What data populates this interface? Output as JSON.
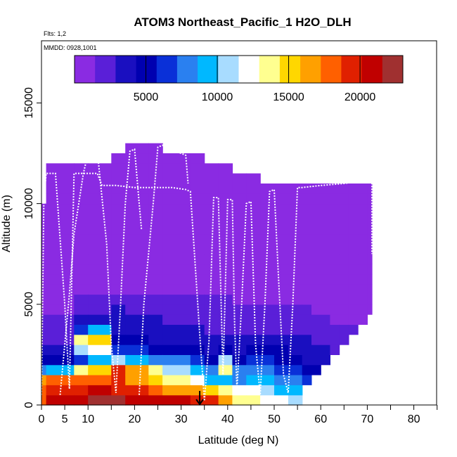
{
  "chart_data": {
    "type": "heatmap",
    "title": "ATOM3 Northeast_Pacific_1 H2O_DLH",
    "flights_label": "Flts: 1,2",
    "date_label": "MMDD: 0928,1001",
    "xlabel": "Latitude (deg N)",
    "ylabel": "Altitude (m)",
    "xlim": [
      0,
      85
    ],
    "ylim": [
      0,
      17800
    ],
    "x_ticks": [
      0,
      5,
      10,
      20,
      30,
      40,
      50,
      60,
      70,
      80
    ],
    "y_ticks": [
      0,
      5000,
      10000,
      15000
    ],
    "colorbar": {
      "min": 0,
      "max": 23000,
      "ticks": [
        5000,
        10000,
        15000,
        20000
      ],
      "colors": [
        "#8a2be2",
        "#5a1fd8",
        "#1a0fc0",
        "#0000b0",
        "#0a30d8",
        "#2a80f0",
        "#00b8ff",
        "#a8dcff",
        "#ffffff",
        "#ffff90",
        "#ffd700",
        "#ffa000",
        "#ff6000",
        "#e02000",
        "#c00000",
        "#a03030"
      ]
    },
    "cell_size": {
      "lat": 1,
      "alt": 500
    },
    "columns": [
      {
        "lat_start": 0,
        "lat_end": 1,
        "top": 10000,
        "values": [
          18500,
          17500,
          16500,
          7500,
          4500,
          3000,
          2500,
          2000,
          1500,
          1000,
          700,
          500,
          400,
          300,
          200,
          200,
          200,
          150,
          150,
          100
        ]
      },
      {
        "lat_start": 1,
        "lat_end": 7,
        "top": 12000,
        "values": [
          21000,
          19000,
          17500,
          9000,
          5000,
          3200,
          2700,
          2200,
          1800,
          1200,
          900,
          600,
          500,
          400,
          300,
          250,
          200,
          150,
          150,
          100,
          100,
          100,
          100,
          100
        ]
      },
      {
        "lat_start": 7,
        "lat_end": 10,
        "top": 12000,
        "values": [
          21500,
          20000,
          18000,
          13000,
          6000,
          10500,
          13000,
          6500,
          3000,
          2000,
          1500,
          1000,
          700,
          500,
          400,
          300,
          250,
          200,
          150,
          150,
          100,
          100,
          100,
          100
        ]
      },
      {
        "lat_start": 10,
        "lat_end": 15,
        "top": 12000,
        "values": [
          22000,
          20500,
          18500,
          15000,
          9000,
          12000,
          15500,
          9000,
          3500,
          2200,
          1600,
          1100,
          800,
          600,
          400,
          300,
          250,
          200,
          150,
          150,
          100,
          100,
          100,
          100
        ]
      },
      {
        "lat_start": 15,
        "lat_end": 18,
        "top": 12500,
        "values": [
          22000,
          20000,
          19500,
          20000,
          10500,
          6500,
          5500,
          4000,
          3500,
          3000,
          2000,
          1200,
          800,
          600,
          400,
          300,
          250,
          200,
          150,
          150,
          100,
          100,
          100,
          100,
          100
        ]
      },
      {
        "lat_start": 18,
        "lat_end": 23,
        "top": 13000,
        "values": [
          21500,
          19000,
          17000,
          16000,
          9500,
          6000,
          4500,
          3500,
          3200,
          2800,
          2000,
          1300,
          900,
          700,
          500,
          400,
          300,
          250,
          200,
          150,
          150,
          100,
          100,
          100,
          100,
          100
        ]
      },
      {
        "lat_start": 23,
        "lat_end": 26,
        "top": 13000,
        "values": [
          21000,
          18000,
          15000,
          13500,
          8500,
          5500,
          4200,
          3200,
          3000,
          2700,
          1900,
          1300,
          900,
          700,
          500,
          400,
          300,
          250,
          200,
          150,
          150,
          100,
          100,
          100,
          100,
          100
        ]
      },
      {
        "lat_start": 26,
        "lat_end": 32,
        "top": 12500,
        "values": [
          20500,
          17000,
          13000,
          11000,
          7500,
          5000,
          4000,
          3100,
          2800,
          2500,
          1800,
          1200,
          850,
          650,
          500,
          400,
          300,
          250,
          200,
          150,
          150,
          100,
          100,
          100,
          100
        ]
      },
      {
        "lat_start": 32,
        "lat_end": 35,
        "top": 12500,
        "values": [
          20000,
          16000,
          11500,
          9000,
          6500,
          4500,
          3600,
          3000,
          2600,
          2400,
          1700,
          1100,
          800,
          600,
          450,
          350,
          300,
          250,
          200,
          150,
          150,
          100,
          100,
          100,
          100
        ]
      },
      {
        "lat_start": 35,
        "lat_end": 38,
        "top": 12000,
        "values": [
          19500,
          15000,
          10000,
          7500,
          5500,
          4000,
          3300,
          2800,
          2400,
          2200,
          1600,
          1000,
          750,
          550,
          400,
          300,
          250,
          200,
          150,
          150,
          100,
          100,
          100,
          100
        ]
      },
      {
        "lat_start": 38,
        "lat_end": 41,
        "top": 12000,
        "values": [
          16000,
          14000,
          9500,
          13000,
          11000,
          5000,
          3500,
          2700,
          2200,
          2000,
          1500,
          900,
          700,
          500,
          400,
          300,
          250,
          200,
          150,
          150,
          100,
          100,
          100,
          100
        ]
      },
      {
        "lat_start": 41,
        "lat_end": 44,
        "top": 11500,
        "values": [
          14000,
          12500,
          8000,
          7500,
          5500,
          4000,
          3200,
          2500,
          2000,
          1800,
          1400,
          900,
          650,
          500,
          380,
          300,
          250,
          200,
          150,
          150,
          100,
          100,
          100
        ]
      },
      {
        "lat_start": 44,
        "lat_end": 47,
        "top": 11500,
        "values": [
          13000,
          11500,
          9000,
          8500,
          6500,
          4500,
          3300,
          2500,
          2000,
          1700,
          1300,
          850,
          600,
          450,
          350,
          300,
          250,
          200,
          150,
          150,
          100,
          100,
          100
        ]
      },
      {
        "lat_start": 47,
        "lat_end": 50,
        "top": 11000,
        "values": [
          12000,
          10500,
          9500,
          8000,
          6500,
          5500,
          3800,
          2800,
          2100,
          1700,
          1300,
          800,
          600,
          450,
          350,
          300,
          250,
          200,
          150,
          150,
          100,
          100
        ]
      },
      {
        "lat_start": 50,
        "lat_end": 53,
        "top": 11000,
        "values": [
          11500,
          10000,
          8500,
          6500,
          5500,
          4800,
          3800,
          2800,
          2200,
          1800,
          1300,
          800,
          600,
          450,
          350,
          300,
          250,
          200,
          150,
          150,
          100,
          100
        ]
      },
      {
        "lat_start": 53,
        "lat_end": 56,
        "top": 11000,
        "values": [
          10500,
          9000,
          7500,
          6000,
          5000,
          4200,
          3500,
          2600,
          2000,
          1700,
          1200,
          750,
          550,
          400,
          300,
          250,
          200,
          150,
          150,
          100,
          100,
          100
        ]
      },
      {
        "lat_start": 56,
        "lat_end": 58,
        "top": 11000,
        "values": [
          0,
          0,
          6000,
          5000,
          4200,
          3600,
          3000,
          2300,
          1800,
          1500,
          1100,
          700,
          500,
          400,
          300,
          250,
          200,
          150,
          150,
          100,
          100,
          100
        ]
      },
      {
        "lat_start": 58,
        "lat_end": 60,
        "top": 11000,
        "values": [
          0,
          0,
          0,
          4500,
          3800,
          3200,
          2700,
          2100,
          1600,
          1300,
          1000,
          650,
          480,
          380,
          300,
          250,
          200,
          150,
          150,
          100,
          100,
          100
        ]
      },
      {
        "lat_start": 60,
        "lat_end": 62,
        "top": 11000,
        "values": [
          0,
          0,
          0,
          0,
          3500,
          3000,
          2500,
          2000,
          1500,
          1200,
          950,
          600,
          450,
          350,
          300,
          250,
          200,
          150,
          150,
          100,
          100,
          100
        ]
      },
      {
        "lat_start": 62,
        "lat_end": 64,
        "top": 11000,
        "values": [
          0,
          0,
          0,
          0,
          0,
          2800,
          2400,
          1900,
          1400,
          1100,
          900,
          600,
          450,
          350,
          300,
          250,
          200,
          150,
          150,
          100,
          100,
          100
        ]
      },
      {
        "lat_start": 64,
        "lat_end": 66,
        "top": 11000,
        "values": [
          0,
          0,
          0,
          0,
          0,
          0,
          2300,
          1800,
          1300,
          1000,
          850,
          550,
          420,
          330,
          280,
          230,
          180,
          150,
          130,
          100,
          100,
          100
        ]
      },
      {
        "lat_start": 66,
        "lat_end": 68,
        "top": 11000,
        "values": [
          0,
          0,
          0,
          0,
          0,
          0,
          0,
          1700,
          1200,
          950,
          800,
          520,
          400,
          320,
          260,
          220,
          180,
          150,
          130,
          100,
          100,
          100
        ]
      },
      {
        "lat_start": 68,
        "lat_end": 70,
        "top": 11000,
        "values": [
          0,
          0,
          0,
          0,
          0,
          0,
          0,
          0,
          1100,
          900,
          750,
          500,
          380,
          300,
          250,
          200,
          170,
          140,
          120,
          100,
          100,
          100
        ]
      },
      {
        "lat_start": 70,
        "lat_end": 71,
        "top": 11000,
        "values": [
          0,
          0,
          0,
          0,
          0,
          0,
          0,
          0,
          0,
          800,
          700,
          480,
          360,
          290,
          240,
          200,
          160,
          140,
          120,
          100,
          100,
          100
        ]
      }
    ],
    "flight_track": [
      [
        0,
        500
      ],
      [
        0.5,
        10000
      ],
      [
        1,
        11500
      ],
      [
        3,
        11500
      ],
      [
        5,
        5000
      ],
      [
        6,
        800
      ],
      [
        7,
        11500
      ],
      [
        10,
        11500
      ],
      [
        12,
        11500
      ],
      [
        13,
        10900
      ],
      [
        16,
        10900
      ],
      [
        20,
        10800
      ],
      [
        24,
        10800
      ],
      [
        28,
        10800
      ],
      [
        31,
        10700
      ],
      [
        32,
        10600
      ],
      [
        34,
        3500
      ],
      [
        35,
        200
      ],
      [
        36,
        3200
      ],
      [
        37,
        10300
      ],
      [
        38,
        10300
      ],
      [
        39,
        1500
      ],
      [
        40,
        10200
      ],
      [
        41,
        10200
      ],
      [
        41.5,
        4000
      ],
      [
        42,
        800
      ],
      [
        43,
        5000
      ],
      [
        44,
        10000
      ],
      [
        45,
        10100
      ],
      [
        46,
        3000
      ],
      [
        47,
        500
      ],
      [
        48,
        5000
      ],
      [
        49,
        10600
      ],
      [
        50,
        10700
      ],
      [
        51,
        6000
      ],
      [
        52,
        1500
      ],
      [
        53,
        600
      ],
      [
        54,
        5000
      ],
      [
        55,
        10800
      ],
      [
        56,
        10800
      ],
      [
        60,
        10900
      ],
      [
        65,
        11000
      ],
      [
        68,
        11100
      ],
      [
        70,
        11200
      ],
      [
        71,
        11100
      ],
      [
        71,
        7500
      ]
    ],
    "flight_track2": [
      [
        4,
        500
      ],
      [
        5,
        3000
      ],
      [
        6,
        5500
      ],
      [
        7,
        8500
      ],
      [
        8,
        10000
      ],
      [
        9,
        11500
      ],
      [
        10,
        12500
      ],
      [
        12,
        12600
      ],
      [
        14,
        8000
      ],
      [
        15,
        3000
      ],
      [
        16,
        600
      ],
      [
        17,
        5000
      ],
      [
        18,
        10000
      ],
      [
        19,
        12600
      ],
      [
        20,
        12700
      ],
      [
        21,
        10000
      ],
      [
        21.5,
        8700
      ]
    ],
    "flight_track3": [
      [
        21,
        500
      ],
      [
        22,
        5000
      ],
      [
        24,
        10000
      ],
      [
        25,
        12800
      ],
      [
        26,
        12900
      ],
      [
        28,
        12600
      ],
      [
        30,
        12500
      ],
      [
        31,
        12400
      ],
      [
        31.5,
        11000
      ]
    ],
    "marker": {
      "lat": 34,
      "label": "arrow"
    }
  }
}
